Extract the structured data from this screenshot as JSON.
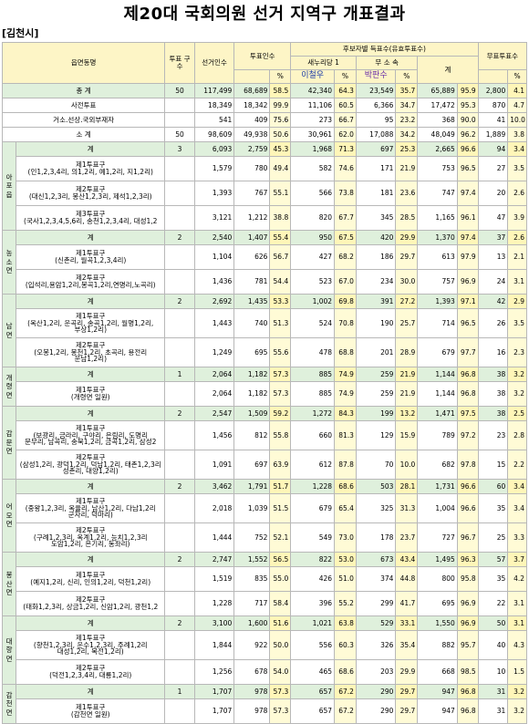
{
  "page": {
    "title": "제20대 국회의원 선거 지역구 개표결과",
    "district": "[김천시]"
  },
  "headers": {
    "area": "읍면동명",
    "district_col": "투표\n구수",
    "electors": "선거인수",
    "voters": "투표인수",
    "votes_group": "후보자별 득표수(유효투표수)",
    "party1": "새누리당 1",
    "party2": "무 소 속",
    "total": "계",
    "cand1": "이철우",
    "cand2": "박판수",
    "pct": "%",
    "invalid": "무표투표수"
  },
  "rows": [
    {
      "type": "total",
      "label": "총 계",
      "n": "50",
      "el": "117,499",
      "vo": "68,689",
      "vp": "58.5",
      "c1": "42,340",
      "c1p": "64.3",
      "c2": "23,549",
      "c2p": "35.7",
      "t": "65,889",
      "tp": "95.9",
      "inv": "2,800",
      "invp": "4.1"
    },
    {
      "type": "plain",
      "label": "사전투표",
      "n": "",
      "el": "18,349",
      "vo": "18,342",
      "vp": "99.9",
      "c1": "11,106",
      "c1p": "60.5",
      "c2": "6,366",
      "c2p": "34.7",
      "t": "17,472",
      "tp": "95.3",
      "inv": "870",
      "invp": "4.7"
    },
    {
      "type": "plain",
      "label": "거소.선상.국외부재자",
      "n": "",
      "el": "541",
      "vo": "409",
      "vp": "75.6",
      "c1": "273",
      "c1p": "66.7",
      "c2": "95",
      "c2p": "23.2",
      "t": "368",
      "tp": "90.0",
      "inv": "41",
      "invp": "10.0"
    },
    {
      "type": "plain",
      "label": "소 계",
      "n": "50",
      "el": "98,609",
      "vo": "49,938",
      "vp": "50.6",
      "c1": "30,961",
      "c1p": "62.0",
      "c2": "17,088",
      "c2p": "34.2",
      "t": "48,049",
      "tp": "96.2",
      "inv": "1,889",
      "invp": "3.8"
    }
  ],
  "groups": [
    {
      "dong": "아포읍",
      "rows": [
        {
          "type": "sum",
          "label": "계",
          "n": "3",
          "el": "6,093",
          "vo": "2,759",
          "vp": "45.3",
          "c1": "1,968",
          "c1p": "71.3",
          "c2": "697",
          "c2p": "25.3",
          "t": "2,665",
          "tp": "96.6",
          "inv": "94",
          "invp": "3.4"
        },
        {
          "type": "sub",
          "label": "제1투표구\n(인1,2,3,4리, 의1,2리, 예1,2리, 지1,2리)",
          "n": "",
          "el": "1,579",
          "vo": "780",
          "vp": "49.4",
          "c1": "582",
          "c1p": "74.6",
          "c2": "171",
          "c2p": "21.9",
          "t": "753",
          "tp": "96.5",
          "inv": "27",
          "invp": "3.5"
        },
        {
          "type": "sub",
          "label": "제2투표구\n(대신1,2,3리, 봉산1,2,3리, 제석1,2,3리)",
          "n": "",
          "el": "1,393",
          "vo": "767",
          "vp": "55.1",
          "c1": "566",
          "c1p": "73.8",
          "c2": "181",
          "c2p": "23.6",
          "t": "747",
          "tp": "97.4",
          "inv": "20",
          "invp": "2.6"
        },
        {
          "type": "sub",
          "label": "제3투표구\n(국사1,2,3,4,5,6리, 송천1,2,3,4리, 대성1,2",
          "n": "",
          "el": "3,121",
          "vo": "1,212",
          "vp": "38.8",
          "c1": "820",
          "c1p": "67.7",
          "c2": "345",
          "c2p": "28.5",
          "t": "1,165",
          "tp": "96.1",
          "inv": "47",
          "invp": "3.9"
        }
      ]
    },
    {
      "dong": "농소면",
      "rows": [
        {
          "type": "sum",
          "label": "계",
          "n": "2",
          "el": "2,540",
          "vo": "1,407",
          "vp": "55.4",
          "c1": "950",
          "c1p": "67.5",
          "c2": "420",
          "c2p": "29.9",
          "t": "1,370",
          "tp": "97.4",
          "inv": "37",
          "invp": "2.6"
        },
        {
          "type": "sub",
          "label": "제1투표구\n(신촌리, 월곡1,2,3,4리)",
          "n": "",
          "el": "1,104",
          "vo": "626",
          "vp": "56.7",
          "c1": "427",
          "c1p": "68.2",
          "c2": "186",
          "c2p": "29.7",
          "t": "613",
          "tp": "97.9",
          "inv": "13",
          "invp": "2.1"
        },
        {
          "type": "sub",
          "label": "제2투표구\n(입석리,용암1,2리,봉곡1,2리,연명리,노곡리)",
          "n": "",
          "el": "1,436",
          "vo": "781",
          "vp": "54.4",
          "c1": "523",
          "c1p": "67.0",
          "c2": "234",
          "c2p": "30.0",
          "t": "757",
          "tp": "96.9",
          "inv": "24",
          "invp": "3.1"
        }
      ]
    },
    {
      "dong": "남면",
      "rows": [
        {
          "type": "sum",
          "label": "계",
          "n": "2",
          "el": "2,692",
          "vo": "1,435",
          "vp": "53.3",
          "c1": "1,002",
          "c1p": "69.8",
          "c2": "391",
          "c2p": "27.2",
          "t": "1,393",
          "tp": "97.1",
          "inv": "42",
          "invp": "2.9"
        },
        {
          "type": "sub3",
          "label": "제1투표구\n(옥산1,2리, 운곡리, 송곡1,2리, 월명1,2리,\n부상1,2리)",
          "n": "",
          "el": "1,443",
          "vo": "740",
          "vp": "51.3",
          "c1": "524",
          "c1p": "70.8",
          "c2": "190",
          "c2p": "25.7",
          "t": "714",
          "tp": "96.5",
          "inv": "26",
          "invp": "3.5"
        },
        {
          "type": "sub3",
          "label": "제2투표구\n(오봉1,2리, 봉천1,2리, 초곡리, 용전리\n운남1,2리)",
          "n": "",
          "el": "1,249",
          "vo": "695",
          "vp": "55.6",
          "c1": "478",
          "c1p": "68.8",
          "c2": "201",
          "c2p": "28.9",
          "t": "679",
          "tp": "97.7",
          "inv": "16",
          "invp": "2.3"
        }
      ]
    },
    {
      "dong": "개령면",
      "rows": [
        {
          "type": "sum",
          "label": "계",
          "n": "1",
          "el": "2,064",
          "vo": "1,182",
          "vp": "57.3",
          "c1": "885",
          "c1p": "74.9",
          "c2": "259",
          "c2p": "21.9",
          "t": "1,144",
          "tp": "96.8",
          "inv": "38",
          "invp": "3.2"
        },
        {
          "type": "sub",
          "label": "제1투표구\n(개령면 일원)",
          "n": "",
          "el": "2,064",
          "vo": "1,182",
          "vp": "57.3",
          "c1": "885",
          "c1p": "74.9",
          "c2": "259",
          "c2p": "21.9",
          "t": "1,144",
          "tp": "96.8",
          "inv": "38",
          "invp": "3.2"
        }
      ]
    },
    {
      "dong": "감문면",
      "rows": [
        {
          "type": "sum",
          "label": "계",
          "n": "2",
          "el": "2,547",
          "vo": "1,509",
          "vp": "59.2",
          "c1": "1,272",
          "c1p": "84.3",
          "c2": "199",
          "c2p": "13.2",
          "t": "1,471",
          "tp": "97.5",
          "inv": "38",
          "invp": "2.5"
        },
        {
          "type": "sub4",
          "label": "제1투표구\n(보광리, 금라리, 구야리, 은림리, 도명리\n문무리, 남곡리, 송북1,2리, 금곡1,2리, 삼성2",
          "n": "",
          "el": "1,456",
          "vo": "812",
          "vp": "55.8",
          "c1": "660",
          "c1p": "81.3",
          "c2": "129",
          "c2p": "15.9",
          "t": "789",
          "tp": "97.2",
          "inv": "23",
          "invp": "2.8"
        },
        {
          "type": "sub3",
          "label": "제2투표구\n(삼성1,2리, 광덕1,2리, 덕남1,2리, 태촌1,2,3리\n성촌리, 대양1,2리)",
          "n": "",
          "el": "1,091",
          "vo": "697",
          "vp": "63.9",
          "c1": "612",
          "c1p": "87.8",
          "c2": "70",
          "c2p": "10.0",
          "t": "682",
          "tp": "97.8",
          "inv": "15",
          "invp": "2.2"
        }
      ]
    },
    {
      "dong": "어모면",
      "rows": [
        {
          "type": "sum",
          "label": "계",
          "n": "2",
          "el": "3,462",
          "vo": "1,791",
          "vp": "51.7",
          "c1": "1,228",
          "c1p": "68.6",
          "c2": "503",
          "c2p": "28.1",
          "t": "1,731",
          "tp": "96.6",
          "inv": "60",
          "invp": "3.4"
        },
        {
          "type": "sub3",
          "label": "제1투표구\n(중왕1,2,3리, 옥율리, 남산1,2리, 다남1,2리\n군자리, 덕마리)",
          "n": "",
          "el": "2,018",
          "vo": "1,039",
          "vp": "51.5",
          "c1": "679",
          "c1p": "65.4",
          "c2": "325",
          "c2p": "31.3",
          "t": "1,004",
          "tp": "96.6",
          "inv": "35",
          "invp": "3.4"
        },
        {
          "type": "sub3",
          "label": "제2투표구\n(구례1,2,3리, 옥계1,2리, 능치1,2,3리\n도암1,2리, 은기리, 동좌리)",
          "n": "",
          "el": "1,444",
          "vo": "752",
          "vp": "52.1",
          "c1": "549",
          "c1p": "73.0",
          "c2": "178",
          "c2p": "23.7",
          "t": "727",
          "tp": "96.7",
          "inv": "25",
          "invp": "3.3"
        }
      ]
    },
    {
      "dong": "봉산면",
      "rows": [
        {
          "type": "sum",
          "label": "계",
          "n": "2",
          "el": "2,747",
          "vo": "1,552",
          "vp": "56.5",
          "c1": "822",
          "c1p": "53.0",
          "c2": "673",
          "c2p": "43.4",
          "t": "1,495",
          "tp": "96.3",
          "inv": "57",
          "invp": "3.7"
        },
        {
          "type": "sub",
          "label": "제1투표구\n(예지1,2리, 신리, 인의1,2리, 덕천1,2리)",
          "n": "",
          "el": "1,519",
          "vo": "835",
          "vp": "55.0",
          "c1": "426",
          "c1p": "51.0",
          "c2": "374",
          "c2p": "44.8",
          "t": "800",
          "tp": "95.8",
          "inv": "35",
          "invp": "4.2"
        },
        {
          "type": "sub",
          "label": "제2투표구\n(태화1,2,3리, 상금1,2리, 신암1,2리, 광천1,2",
          "n": "",
          "el": "1,228",
          "vo": "717",
          "vp": "58.4",
          "c1": "396",
          "c1p": "55.2",
          "c2": "299",
          "c2p": "41.7",
          "t": "695",
          "tp": "96.9",
          "inv": "22",
          "invp": "3.1"
        }
      ]
    },
    {
      "dong": "대항면",
      "rows": [
        {
          "type": "sum",
          "label": "계",
          "n": "2",
          "el": "3,100",
          "vo": "1,600",
          "vp": "51.6",
          "c1": "1,021",
          "c1p": "63.8",
          "c2": "529",
          "c2p": "33.1",
          "t": "1,550",
          "tp": "96.9",
          "inv": "50",
          "invp": "3.1"
        },
        {
          "type": "sub3",
          "label": "제1투표구\n(향천1,2,3리, 운수1,2,3리, 주례1,2리\n대성1,2리, 복전1,2리)",
          "n": "",
          "el": "1,844",
          "vo": "922",
          "vp": "50.0",
          "c1": "556",
          "c1p": "60.3",
          "c2": "326",
          "c2p": "35.4",
          "t": "882",
          "tp": "95.7",
          "inv": "40",
          "invp": "4.3"
        },
        {
          "type": "sub",
          "label": "제2투표구\n(덕전1,2,3,4리, 대룡1,2리)",
          "n": "",
          "el": "1,256",
          "vo": "678",
          "vp": "54.0",
          "c1": "465",
          "c1p": "68.6",
          "c2": "203",
          "c2p": "29.9",
          "t": "668",
          "tp": "98.5",
          "inv": "10",
          "invp": "1.5"
        }
      ]
    },
    {
      "dong": "감천면",
      "rows": [
        {
          "type": "sum",
          "label": "계",
          "n": "1",
          "el": "1,707",
          "vo": "978",
          "vp": "57.3",
          "c1": "657",
          "c1p": "67.2",
          "c2": "290",
          "c2p": "29.7",
          "t": "947",
          "tp": "96.8",
          "inv": "31",
          "invp": "3.2"
        },
        {
          "type": "sub",
          "label": "제1투표구\n(감천면 일원)",
          "n": "",
          "el": "1,707",
          "vo": "978",
          "vp": "57.3",
          "c1": "657",
          "c1p": "67.2",
          "c2": "290",
          "c2p": "29.7",
          "t": "947",
          "tp": "96.8",
          "inv": "31",
          "invp": "3.2"
        }
      ]
    }
  ]
}
